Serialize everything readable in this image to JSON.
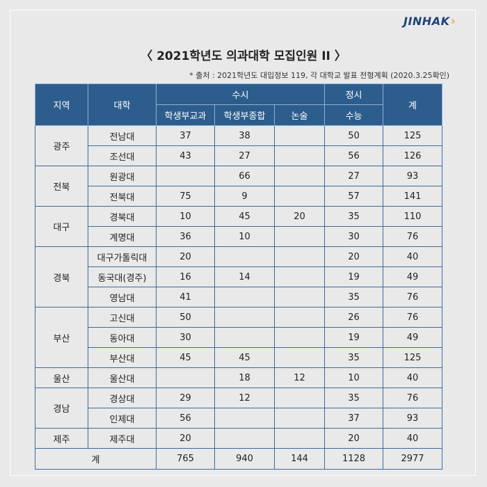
{
  "brand": {
    "name": "JINHAK",
    "mark": "›"
  },
  "title": "〈 2021학년도 의과대학 모집인원 II 〉",
  "source": "* 출처 : 2021학년도 대입정보 119, 각 대학교 발표 전형계획 (2020.3.25확인)",
  "header": {
    "region": "지역",
    "univ": "대학",
    "susi": "수시",
    "jeongsi": "정시",
    "total": "계",
    "sub1": "학생부교과",
    "sub2": "학생부종합",
    "sub3": "논술",
    "sub4": "수능"
  },
  "regions": [
    "광주",
    "전북",
    "대구",
    "경북",
    "부산",
    "울산",
    "경남",
    "제주"
  ],
  "rows": [
    {
      "univ": "전남대",
      "a": "37",
      "b": "38",
      "c": "",
      "d": "50",
      "t": "125"
    },
    {
      "univ": "조선대",
      "a": "43",
      "b": "27",
      "c": "",
      "d": "56",
      "t": "126"
    },
    {
      "univ": "원광대",
      "a": "",
      "b": "66",
      "c": "",
      "d": "27",
      "t": "93"
    },
    {
      "univ": "전북대",
      "a": "75",
      "b": "9",
      "c": "",
      "d": "57",
      "t": "141"
    },
    {
      "univ": "경북대",
      "a": "10",
      "b": "45",
      "c": "20",
      "d": "35",
      "t": "110"
    },
    {
      "univ": "계명대",
      "a": "36",
      "b": "10",
      "c": "",
      "d": "30",
      "t": "76"
    },
    {
      "univ": "대구가톨릭대",
      "a": "20",
      "b": "",
      "c": "",
      "d": "20",
      "t": "40"
    },
    {
      "univ": "동국대(경주)",
      "a": "16",
      "b": "14",
      "c": "",
      "d": "19",
      "t": "49"
    },
    {
      "univ": "영남대",
      "a": "41",
      "b": "",
      "c": "",
      "d": "35",
      "t": "76"
    },
    {
      "univ": "고신대",
      "a": "50",
      "b": "",
      "c": "",
      "d": "26",
      "t": "76"
    },
    {
      "univ": "동아대",
      "a": "30",
      "b": "",
      "c": "",
      "d": "19",
      "t": "49"
    },
    {
      "univ": "부산대",
      "a": "45",
      "b": "45",
      "c": "",
      "d": "35",
      "t": "125"
    },
    {
      "univ": "울산대",
      "a": "",
      "b": "18",
      "c": "12",
      "d": "10",
      "t": "40"
    },
    {
      "univ": "경상대",
      "a": "29",
      "b": "12",
      "c": "",
      "d": "35",
      "t": "76"
    },
    {
      "univ": "인제대",
      "a": "56",
      "b": "",
      "c": "",
      "d": "37",
      "t": "93"
    },
    {
      "univ": "제주대",
      "a": "20",
      "b": "",
      "c": "",
      "d": "20",
      "t": "40"
    }
  ],
  "totals": {
    "label": "계",
    "a": "765",
    "b": "940",
    "c": "144",
    "d": "1128",
    "t": "2977"
  }
}
